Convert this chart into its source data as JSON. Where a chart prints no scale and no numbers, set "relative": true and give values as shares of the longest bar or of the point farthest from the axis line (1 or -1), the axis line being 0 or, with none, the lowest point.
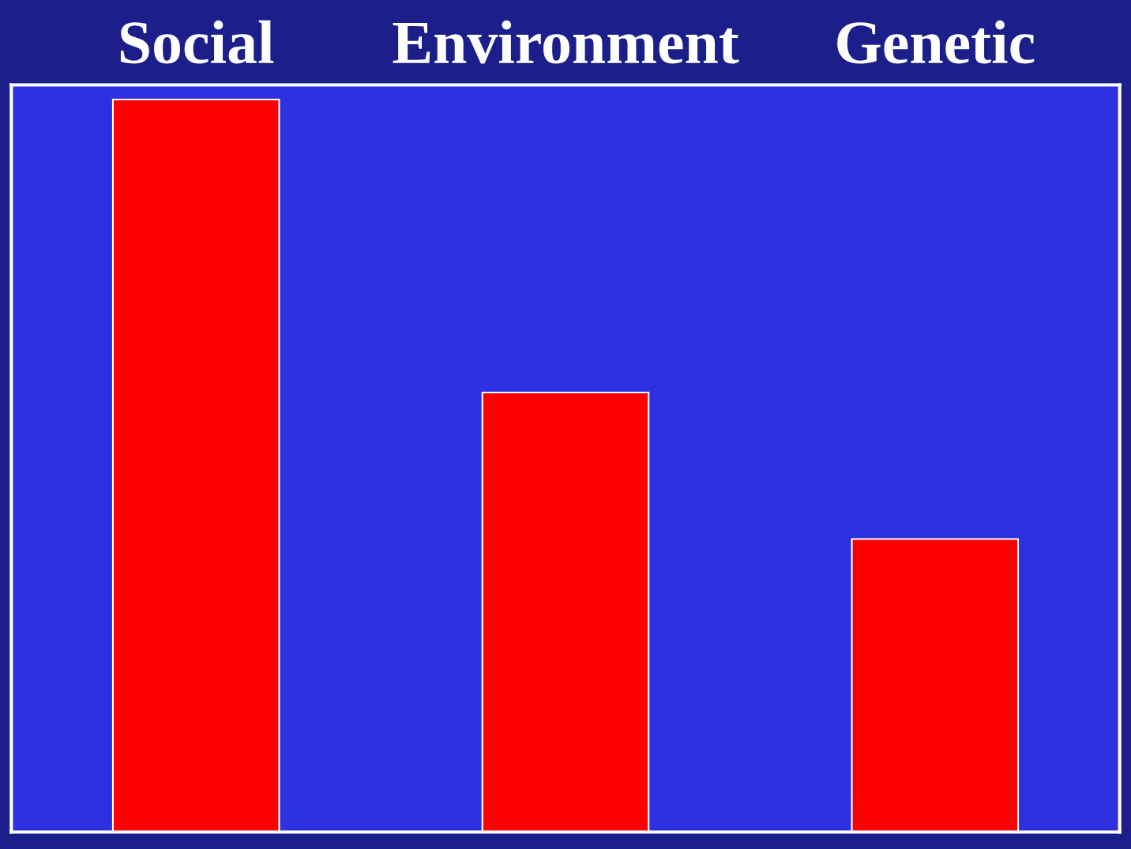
{
  "chart_data": {
    "type": "bar",
    "relative": true,
    "categories": [
      "Social",
      "Environment",
      "Genetic"
    ],
    "values": [
      1,
      0.6,
      0.4
    ],
    "color": "#ff0000"
  }
}
